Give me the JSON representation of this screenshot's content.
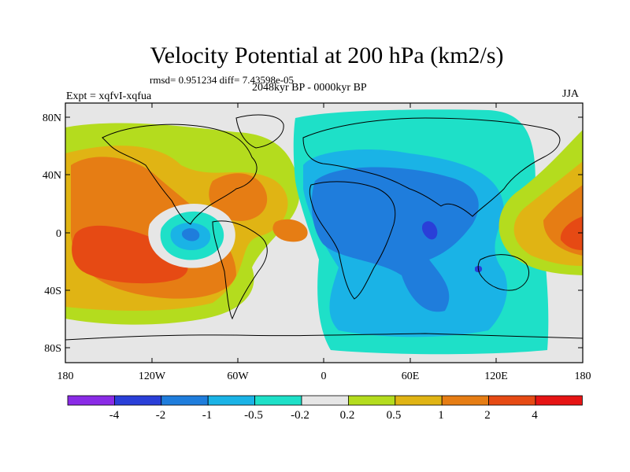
{
  "title": "Velocity Potential at 200 hPa (km2/s)",
  "stats": "rmsd= 0.951234 diff= 7.43598e-05",
  "period": "2048kyr BP - 0000kyr BP",
  "experiment": "Expt = xqfvI-xqfua",
  "season": "JJA",
  "map": {
    "lon_ticks": [
      "180",
      "120W",
      "60W",
      "0",
      "60E",
      "120E",
      "180"
    ],
    "lat_ticks": [
      "80N",
      "40N",
      "0",
      "40S",
      "80S"
    ],
    "land_fill": "#e6e6e6",
    "coast_color": "#000000"
  },
  "colorbar": {
    "colors": [
      "#8a2be6",
      "#2a3fd8",
      "#1f7ddc",
      "#1ab3e6",
      "#1ee0c8",
      "#e6e6e6",
      "#b4dc1e",
      "#e0b414",
      "#e67d14",
      "#e64a14",
      "#e61414"
    ],
    "labels": [
      "-4",
      "-2",
      "-1",
      "-0.5",
      "-0.2",
      "0.2",
      "0.5",
      "1",
      "2",
      "4"
    ]
  }
}
